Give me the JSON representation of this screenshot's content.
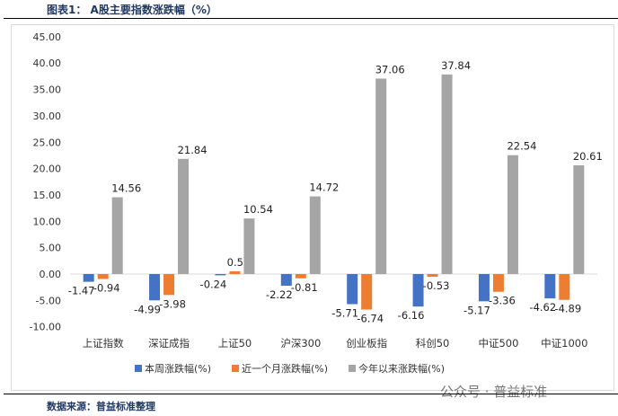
{
  "title": "图表1： A股主要指数涨跌幅（%）",
  "source": "数据来源：普益标准整理",
  "watermark": "公众号 · 普益标准",
  "chart_data": {
    "type": "bar",
    "categories": [
      "上证指数",
      "深证成指",
      "上证50",
      "沪深300",
      "创业板指",
      "科创50",
      "中证500",
      "中证1000"
    ],
    "series": [
      {
        "name": "本周涨跌幅(%)",
        "color": "#4472c4",
        "values": [
          -1.47,
          -4.99,
          -0.24,
          -2.22,
          -5.71,
          -6.16,
          -5.17,
          -4.62
        ]
      },
      {
        "name": "近一个月涨跌幅(%)",
        "color": "#ed7d31",
        "values": [
          -0.94,
          -3.98,
          0.51,
          -0.81,
          -6.74,
          -0.53,
          -3.36,
          -4.89
        ]
      },
      {
        "name": "今年以来涨跌幅(%)",
        "color": "#a5a5a5",
        "values": [
          14.56,
          21.84,
          10.54,
          14.72,
          37.06,
          37.84,
          22.54,
          20.61
        ]
      }
    ],
    "yticks": [
      "45.00",
      "40.00",
      "35.00",
      "30.00",
      "25.00",
      "20.00",
      "15.00",
      "10.00",
      "5.00",
      "0.00",
      "-5.00",
      "-10.00"
    ],
    "ylim": [
      -10,
      45
    ],
    "legend": "bottom",
    "grid": false
  }
}
